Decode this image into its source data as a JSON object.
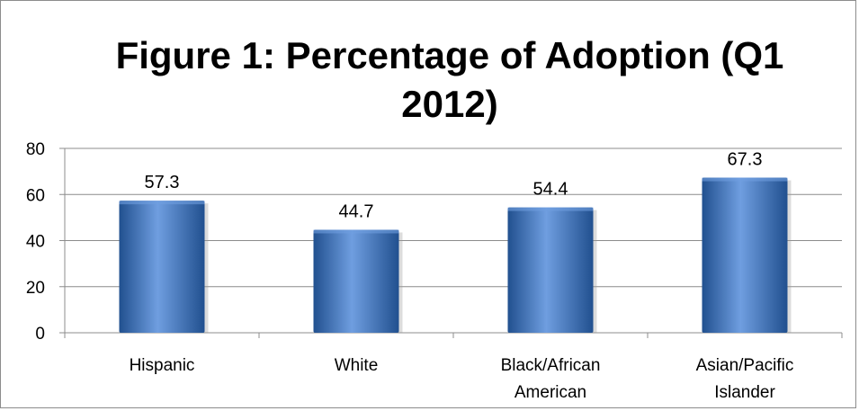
{
  "chart_data": {
    "type": "bar",
    "title": "Figure 1: Percentage of Adoption (Q1 2012)",
    "categories": [
      [
        "Hispanic"
      ],
      [
        "White"
      ],
      [
        "Black/African",
        "American"
      ],
      [
        "Asian/Pacific",
        "Islander"
      ]
    ],
    "values": [
      57.3,
      44.7,
      54.4,
      67.3
    ],
    "value_labels": [
      "57.3",
      "44.7",
      "54.4",
      "67.3"
    ],
    "ylim": [
      0,
      80
    ],
    "yticks": [
      0,
      20,
      40,
      60,
      80
    ],
    "xlabel": "",
    "ylabel": "",
    "grid": true,
    "legend": "none",
    "bar_color": "#3c72c3",
    "bar_color_light": "#6f9ee0",
    "bar_color_dark": "#21508f"
  }
}
